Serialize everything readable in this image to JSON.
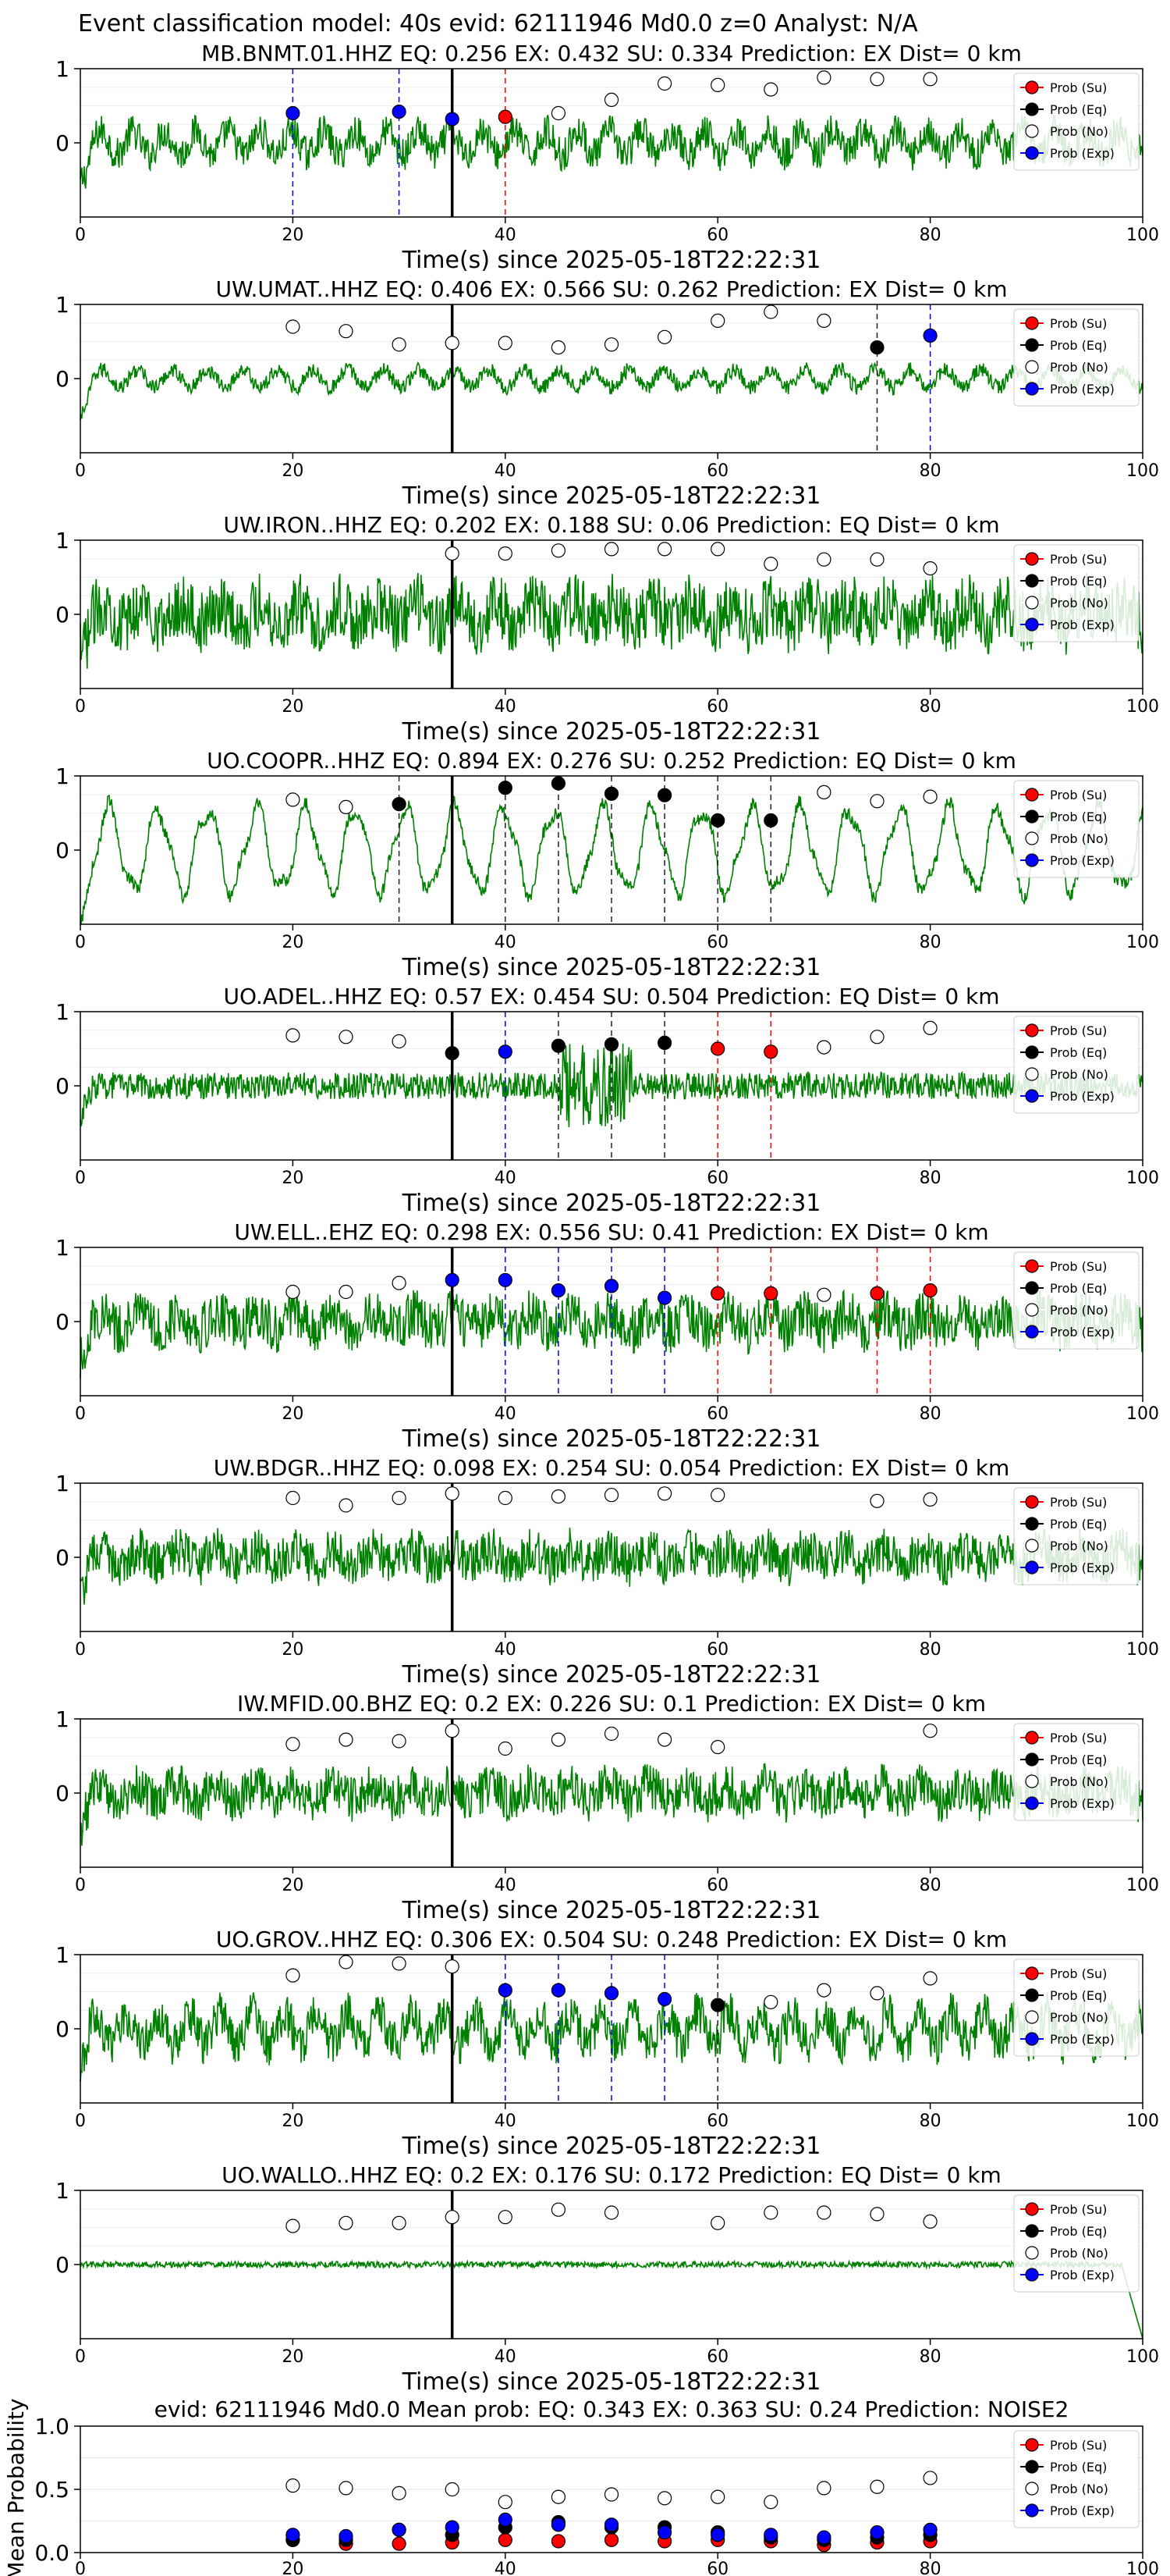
{
  "figure": {
    "suptitle": "Event classification model: 40s evid: 62111946 Md0.0 z=0 Analyst: N/A",
    "xlabel": "Time(s) since 2025-05-18T22:22:31",
    "mean_ylabel": "Mean Probability",
    "legend": [
      "Prob (Su)",
      "Prob (Eq)",
      "Prob (No)",
      "Prob (Exp)"
    ],
    "colors": {
      "waveform": "#008000",
      "su": "#ff0000",
      "eq": "#000000",
      "no": "#ffffff",
      "exp": "#0000ff",
      "legend_bg": "#ffffff"
    }
  },
  "chart_data": [
    {
      "type": "line",
      "station": "MB.BNMT.01.HHZ",
      "title": "MB.BNMT.01.HHZ   EQ: 0.256  EX: 0.432  SU: 0.334   Prediction: EX    Dist= 0 km",
      "event_line": 35,
      "xlim": [
        0,
        100
      ],
      "ylim": [
        -1,
        1
      ],
      "xticks": [
        0,
        20,
        40,
        60,
        80,
        100
      ],
      "yticks": [
        0,
        1
      ],
      "waveform": {
        "amp": 0.35,
        "style": "mixed"
      },
      "points": [
        {
          "x": 20,
          "p": 0.4,
          "c": "exp"
        },
        {
          "x": 30,
          "p": 0.42,
          "c": "exp"
        },
        {
          "x": 35,
          "p": 0.32,
          "c": "exp"
        },
        {
          "x": 40,
          "p": 0.35,
          "c": "su"
        },
        {
          "x": 45,
          "p": 0.4,
          "c": "no"
        },
        {
          "x": 50,
          "p": 0.58,
          "c": "no"
        },
        {
          "x": 55,
          "p": 0.8,
          "c": "no"
        },
        {
          "x": 60,
          "p": 0.78,
          "c": "no"
        },
        {
          "x": 65,
          "p": 0.72,
          "c": "no"
        },
        {
          "x": 70,
          "p": 0.88,
          "c": "no"
        },
        {
          "x": 75,
          "p": 0.86,
          "c": "no"
        },
        {
          "x": 80,
          "p": 0.86,
          "c": "no"
        }
      ]
    },
    {
      "type": "line",
      "station": "UW.UMAT..HHZ",
      "title": "UW.UMAT..HHZ   EQ: 0.406  EX: 0.566  SU: 0.262   Prediction: EX    Dist= 0 km",
      "event_line": 35,
      "xlim": [
        0,
        100
      ],
      "ylim": [
        -1,
        1
      ],
      "xticks": [
        0,
        20,
        40,
        60,
        80,
        100
      ],
      "yticks": [
        0,
        1
      ],
      "waveform": {
        "amp": 0.2,
        "style": "smooth"
      },
      "points": [
        {
          "x": 20,
          "p": 0.7,
          "c": "no"
        },
        {
          "x": 25,
          "p": 0.64,
          "c": "no"
        },
        {
          "x": 30,
          "p": 0.46,
          "c": "no"
        },
        {
          "x": 35,
          "p": 0.48,
          "c": "no"
        },
        {
          "x": 40,
          "p": 0.48,
          "c": "no"
        },
        {
          "x": 45,
          "p": 0.42,
          "c": "no"
        },
        {
          "x": 50,
          "p": 0.46,
          "c": "no"
        },
        {
          "x": 55,
          "p": 0.56,
          "c": "no"
        },
        {
          "x": 60,
          "p": 0.78,
          "c": "no"
        },
        {
          "x": 65,
          "p": 0.9,
          "c": "no"
        },
        {
          "x": 70,
          "p": 0.78,
          "c": "no"
        },
        {
          "x": 75,
          "p": 0.42,
          "c": "eq"
        },
        {
          "x": 80,
          "p": 0.58,
          "c": "exp"
        }
      ]
    },
    {
      "type": "line",
      "station": "UW.IRON..HHZ",
      "title": "UW.IRON..HHZ   EQ: 0.202  EX: 0.188  SU: 0.06   Prediction: EQ    Dist= 0 km",
      "event_line": 35,
      "xlim": [
        0,
        100
      ],
      "ylim": [
        -1,
        1
      ],
      "xticks": [
        0,
        20,
        40,
        60,
        80,
        100
      ],
      "yticks": [
        0,
        1
      ],
      "waveform": {
        "amp": 0.45,
        "style": "noisy"
      },
      "points": [
        {
          "x": 35,
          "p": 0.82,
          "c": "no"
        },
        {
          "x": 40,
          "p": 0.82,
          "c": "no"
        },
        {
          "x": 45,
          "p": 0.86,
          "c": "no"
        },
        {
          "x": 50,
          "p": 0.88,
          "c": "no"
        },
        {
          "x": 55,
          "p": 0.88,
          "c": "no"
        },
        {
          "x": 60,
          "p": 0.88,
          "c": "no"
        },
        {
          "x": 65,
          "p": 0.68,
          "c": "no"
        },
        {
          "x": 70,
          "p": 0.74,
          "c": "no"
        },
        {
          "x": 75,
          "p": 0.74,
          "c": "no"
        },
        {
          "x": 80,
          "p": 0.62,
          "c": "no"
        }
      ]
    },
    {
      "type": "line",
      "station": "UO.COOPR..HHZ",
      "title": "UO.COOPR..HHZ   EQ: 0.894  EX: 0.276  SU: 0.252   Prediction: EQ    Dist= 0 km",
      "event_line": 35,
      "xlim": [
        0,
        100
      ],
      "ylim": [
        -1,
        1
      ],
      "xticks": [
        0,
        20,
        40,
        60,
        80,
        100
      ],
      "yticks": [
        0,
        1
      ],
      "waveform": {
        "amp": 0.6,
        "style": "oscillating"
      },
      "points": [
        {
          "x": 20,
          "p": 0.68,
          "c": "no"
        },
        {
          "x": 25,
          "p": 0.58,
          "c": "no"
        },
        {
          "x": 30,
          "p": 0.62,
          "c": "eq"
        },
        {
          "x": 40,
          "p": 0.84,
          "c": "eq"
        },
        {
          "x": 45,
          "p": 0.9,
          "c": "eq"
        },
        {
          "x": 50,
          "p": 0.76,
          "c": "eq"
        },
        {
          "x": 55,
          "p": 0.74,
          "c": "eq"
        },
        {
          "x": 60,
          "p": 0.4,
          "c": "eq"
        },
        {
          "x": 65,
          "p": 0.4,
          "c": "eq"
        },
        {
          "x": 70,
          "p": 0.78,
          "c": "no"
        },
        {
          "x": 75,
          "p": 0.66,
          "c": "no"
        },
        {
          "x": 80,
          "p": 0.72,
          "c": "no"
        }
      ]
    },
    {
      "type": "line",
      "station": "UO.ADEL..HHZ",
      "title": "UO.ADEL..HHZ   EQ: 0.57  EX: 0.454  SU: 0.504   Prediction: EQ    Dist= 0 km",
      "event_line": 35,
      "xlim": [
        0,
        100
      ],
      "ylim": [
        -1,
        1
      ],
      "xticks": [
        0,
        20,
        40,
        60,
        80,
        100
      ],
      "yticks": [
        0,
        1
      ],
      "waveform": {
        "amp": 0.18,
        "style": "noisy_burst"
      },
      "points": [
        {
          "x": 20,
          "p": 0.68,
          "c": "no"
        },
        {
          "x": 25,
          "p": 0.66,
          "c": "no"
        },
        {
          "x": 30,
          "p": 0.6,
          "c": "no"
        },
        {
          "x": 35,
          "p": 0.44,
          "c": "eq"
        },
        {
          "x": 40,
          "p": 0.46,
          "c": "exp"
        },
        {
          "x": 45,
          "p": 0.54,
          "c": "eq"
        },
        {
          "x": 50,
          "p": 0.56,
          "c": "eq"
        },
        {
          "x": 55,
          "p": 0.58,
          "c": "eq"
        },
        {
          "x": 60,
          "p": 0.5,
          "c": "su"
        },
        {
          "x": 65,
          "p": 0.46,
          "c": "su"
        },
        {
          "x": 70,
          "p": 0.52,
          "c": "no"
        },
        {
          "x": 75,
          "p": 0.66,
          "c": "no"
        },
        {
          "x": 80,
          "p": 0.78,
          "c": "no"
        }
      ]
    },
    {
      "type": "line",
      "station": "UW.ELL..EHZ",
      "title": "UW.ELL..EHZ   EQ: 0.298  EX: 0.556  SU: 0.41   Prediction: EX    Dist= 0 km",
      "event_line": 35,
      "xlim": [
        0,
        100
      ],
      "ylim": [
        -1,
        1
      ],
      "xticks": [
        0,
        20,
        40,
        60,
        80,
        100
      ],
      "yticks": [
        0,
        1
      ],
      "waveform": {
        "amp": 0.35,
        "style": "noisy"
      },
      "points": [
        {
          "x": 20,
          "p": 0.4,
          "c": "no"
        },
        {
          "x": 25,
          "p": 0.4,
          "c": "no"
        },
        {
          "x": 30,
          "p": 0.52,
          "c": "no"
        },
        {
          "x": 35,
          "p": 0.56,
          "c": "exp"
        },
        {
          "x": 40,
          "p": 0.56,
          "c": "exp"
        },
        {
          "x": 45,
          "p": 0.42,
          "c": "exp"
        },
        {
          "x": 50,
          "p": 0.48,
          "c": "exp"
        },
        {
          "x": 55,
          "p": 0.32,
          "c": "exp"
        },
        {
          "x": 60,
          "p": 0.38,
          "c": "su"
        },
        {
          "x": 65,
          "p": 0.38,
          "c": "su"
        },
        {
          "x": 70,
          "p": 0.36,
          "c": "no"
        },
        {
          "x": 75,
          "p": 0.38,
          "c": "su"
        },
        {
          "x": 80,
          "p": 0.42,
          "c": "su"
        }
      ]
    },
    {
      "type": "line",
      "station": "UW.BDGR..HHZ",
      "title": "UW.BDGR..HHZ   EQ: 0.098  EX: 0.254  SU: 0.054   Prediction: EX    Dist= 0 km",
      "event_line": 35,
      "xlim": [
        0,
        100
      ],
      "ylim": [
        -1,
        1
      ],
      "xticks": [
        0,
        20,
        40,
        60,
        80,
        100
      ],
      "yticks": [
        0,
        1
      ],
      "waveform": {
        "amp": 0.32,
        "style": "noisy"
      },
      "points": [
        {
          "x": 20,
          "p": 0.8,
          "c": "no"
        },
        {
          "x": 25,
          "p": 0.7,
          "c": "no"
        },
        {
          "x": 30,
          "p": 0.8,
          "c": "no"
        },
        {
          "x": 35,
          "p": 0.86,
          "c": "no"
        },
        {
          "x": 40,
          "p": 0.8,
          "c": "no"
        },
        {
          "x": 45,
          "p": 0.82,
          "c": "no"
        },
        {
          "x": 50,
          "p": 0.84,
          "c": "no"
        },
        {
          "x": 55,
          "p": 0.86,
          "c": "no"
        },
        {
          "x": 60,
          "p": 0.84,
          "c": "no"
        },
        {
          "x": 75,
          "p": 0.76,
          "c": "no"
        },
        {
          "x": 80,
          "p": 0.78,
          "c": "no"
        }
      ]
    },
    {
      "type": "line",
      "station": "IW.MFID.00.BHZ",
      "title": "IW.MFID.00.BHZ   EQ: 0.2  EX: 0.226  SU: 0.1   Prediction: EX    Dist= 0 km",
      "event_line": 35,
      "xlim": [
        0,
        100
      ],
      "ylim": [
        -1,
        1
      ],
      "xticks": [
        0,
        20,
        40,
        60,
        80,
        100
      ],
      "yticks": [
        0,
        1
      ],
      "waveform": {
        "amp": 0.32,
        "style": "noisy"
      },
      "points": [
        {
          "x": 20,
          "p": 0.66,
          "c": "no"
        },
        {
          "x": 25,
          "p": 0.72,
          "c": "no"
        },
        {
          "x": 30,
          "p": 0.7,
          "c": "no"
        },
        {
          "x": 35,
          "p": 0.84,
          "c": "no"
        },
        {
          "x": 40,
          "p": 0.6,
          "c": "no"
        },
        {
          "x": 45,
          "p": 0.72,
          "c": "no"
        },
        {
          "x": 50,
          "p": 0.8,
          "c": "no"
        },
        {
          "x": 55,
          "p": 0.72,
          "c": "no"
        },
        {
          "x": 60,
          "p": 0.62,
          "c": "no"
        },
        {
          "x": 80,
          "p": 0.84,
          "c": "no"
        }
      ]
    },
    {
      "type": "line",
      "station": "UO.GROV..HHZ",
      "title": "UO.GROV..HHZ   EQ: 0.306  EX: 0.504  SU: 0.248   Prediction: EX    Dist= 0 km",
      "event_line": 35,
      "xlim": [
        0,
        100
      ],
      "ylim": [
        -1,
        1
      ],
      "xticks": [
        0,
        20,
        40,
        60,
        80,
        100
      ],
      "yticks": [
        0,
        1
      ],
      "waveform": {
        "amp": 0.45,
        "style": "mixed"
      },
      "points": [
        {
          "x": 20,
          "p": 0.72,
          "c": "no"
        },
        {
          "x": 25,
          "p": 0.9,
          "c": "no"
        },
        {
          "x": 30,
          "p": 0.88,
          "c": "no"
        },
        {
          "x": 35,
          "p": 0.84,
          "c": "no"
        },
        {
          "x": 40,
          "p": 0.52,
          "c": "exp"
        },
        {
          "x": 45,
          "p": 0.52,
          "c": "exp"
        },
        {
          "x": 50,
          "p": 0.48,
          "c": "exp"
        },
        {
          "x": 55,
          "p": 0.4,
          "c": "exp"
        },
        {
          "x": 60,
          "p": 0.32,
          "c": "eq"
        },
        {
          "x": 65,
          "p": 0.36,
          "c": "no"
        },
        {
          "x": 70,
          "p": 0.52,
          "c": "no"
        },
        {
          "x": 75,
          "p": 0.48,
          "c": "no"
        },
        {
          "x": 80,
          "p": 0.68,
          "c": "no"
        }
      ]
    },
    {
      "type": "line",
      "station": "UO.WALLO..HHZ",
      "title": "UO.WALLO..HHZ   EQ: 0.2  EX: 0.176  SU: 0.172   Prediction: EQ    Dist= 0 km",
      "event_line": 35,
      "xlim": [
        0,
        100
      ],
      "ylim": [
        -1,
        1
      ],
      "xticks": [
        0,
        20,
        40,
        60,
        80,
        100
      ],
      "yticks": [
        0,
        1
      ],
      "waveform": {
        "amp": 0.05,
        "style": "quiet"
      },
      "points": [
        {
          "x": 20,
          "p": 0.52,
          "c": "no"
        },
        {
          "x": 25,
          "p": 0.56,
          "c": "no"
        },
        {
          "x": 30,
          "p": 0.56,
          "c": "no"
        },
        {
          "x": 35,
          "p": 0.64,
          "c": "no"
        },
        {
          "x": 40,
          "p": 0.64,
          "c": "no"
        },
        {
          "x": 45,
          "p": 0.74,
          "c": "no"
        },
        {
          "x": 50,
          "p": 0.7,
          "c": "no"
        },
        {
          "x": 60,
          "p": 0.56,
          "c": "no"
        },
        {
          "x": 65,
          "p": 0.7,
          "c": "no"
        },
        {
          "x": 70,
          "p": 0.7,
          "c": "no"
        },
        {
          "x": 75,
          "p": 0.68,
          "c": "no"
        },
        {
          "x": 80,
          "p": 0.58,
          "c": "no"
        }
      ]
    },
    {
      "type": "scatter",
      "title": "evid: 62111946  Md0.0   Mean prob:   EQ: 0.343  EX: 0.363  SU: 0.24   Prediction: NOISE2",
      "ylabel": "Mean Probability",
      "xlim": [
        0,
        100
      ],
      "ylim": [
        0,
        1
      ],
      "xticks": [
        0,
        20,
        40,
        60,
        80,
        100
      ],
      "yticks": [
        0.0,
        0.5,
        1.0
      ],
      "x": [
        20,
        25,
        30,
        35,
        40,
        45,
        50,
        55,
        60,
        65,
        70,
        75,
        80
      ],
      "series": [
        {
          "name": "Prob (Su)",
          "c": "su",
          "values": [
            0.1,
            0.07,
            0.07,
            0.08,
            0.1,
            0.09,
            0.1,
            0.09,
            0.1,
            0.09,
            0.06,
            0.08,
            0.09
          ]
        },
        {
          "name": "Prob (Eq)",
          "c": "eq",
          "values": [
            0.1,
            0.1,
            0.18,
            0.14,
            0.2,
            0.24,
            0.2,
            0.2,
            0.16,
            0.12,
            0.1,
            0.12,
            0.14
          ]
        },
        {
          "name": "Prob (No)",
          "c": "no",
          "values": [
            0.53,
            0.51,
            0.47,
            0.5,
            0.4,
            0.44,
            0.46,
            0.43,
            0.44,
            0.4,
            0.51,
            0.52,
            0.59
          ]
        },
        {
          "name": "Prob (Exp)",
          "c": "exp",
          "values": [
            0.14,
            0.13,
            0.18,
            0.2,
            0.26,
            0.22,
            0.22,
            0.16,
            0.14,
            0.14,
            0.12,
            0.16,
            0.18
          ]
        }
      ]
    }
  ]
}
